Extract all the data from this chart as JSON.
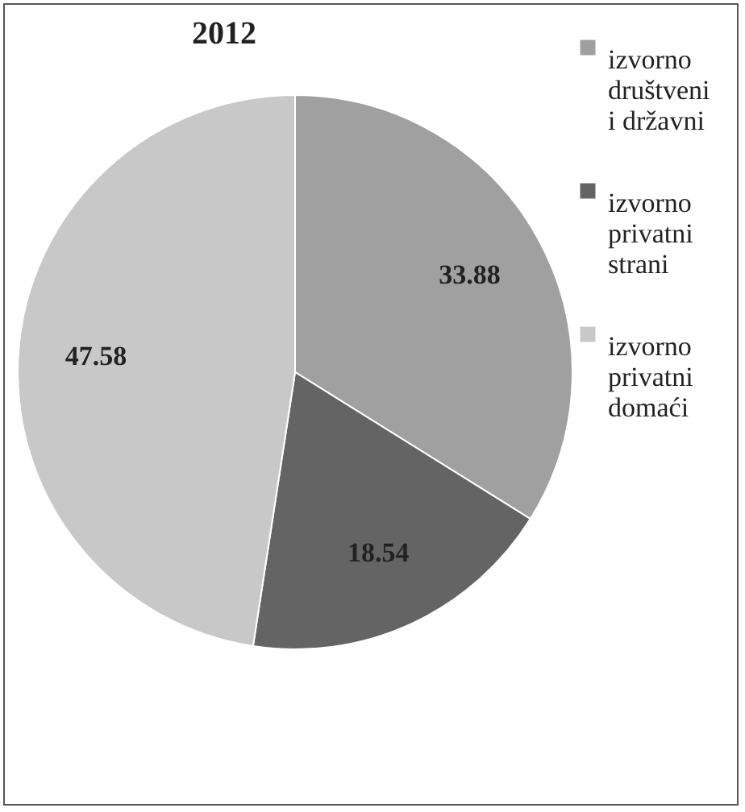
{
  "chart_data": {
    "type": "pie",
    "title": "2012",
    "categories": [
      "izvorno društveni i državni",
      "izvorno privatni strani",
      "izvorno privatni domaći"
    ],
    "values": [
      33.88,
      18.54,
      47.58
    ],
    "colors": [
      "#a0a0a0",
      "#646464",
      "#c8c8c8"
    ],
    "data_labels": true,
    "legend": "right"
  }
}
